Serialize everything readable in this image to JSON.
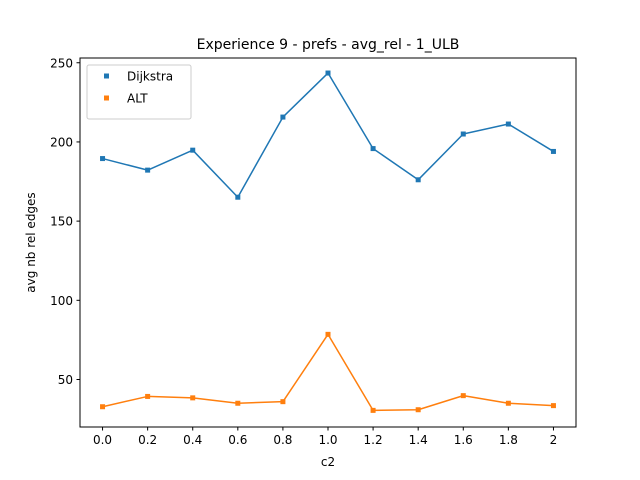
{
  "chart_data": {
    "type": "line",
    "title": "Experience 9 - prefs - avg_rel - 1_ULB",
    "xlabel": "c2",
    "ylabel": "avg nb rel edges",
    "x": [
      0,
      0.2,
      0.4,
      0.6,
      0.8,
      1.0,
      1.2,
      1.4,
      1.6,
      1.8,
      2
    ],
    "x_tick_labels": [
      "0.0",
      "0.2",
      "0.4",
      "0.6",
      "0.8",
      "1.0",
      "1.2",
      "1.4",
      "1.6",
      "1.8",
      "2"
    ],
    "y_ticks": [
      50,
      100,
      150,
      200,
      250
    ],
    "xlim": [
      -0.1,
      2.1
    ],
    "ylim": [
      20,
      253
    ],
    "grid": false,
    "legend_position": "top-left",
    "series": [
      {
        "name": "Dijkstra",
        "color": "#1f77b4",
        "marker": "square",
        "values": [
          189.5,
          182.2,
          194.8,
          165.1,
          215.7,
          243.5,
          195.8,
          176.1,
          205.0,
          211.3,
          194.0
        ]
      },
      {
        "name": "ALT",
        "color": "#ff7f0e",
        "marker": "square",
        "values": [
          32.8,
          39.3,
          38.4,
          35.0,
          36.0,
          78.5,
          30.5,
          30.9,
          39.8,
          35.0,
          33.5
        ]
      }
    ]
  }
}
